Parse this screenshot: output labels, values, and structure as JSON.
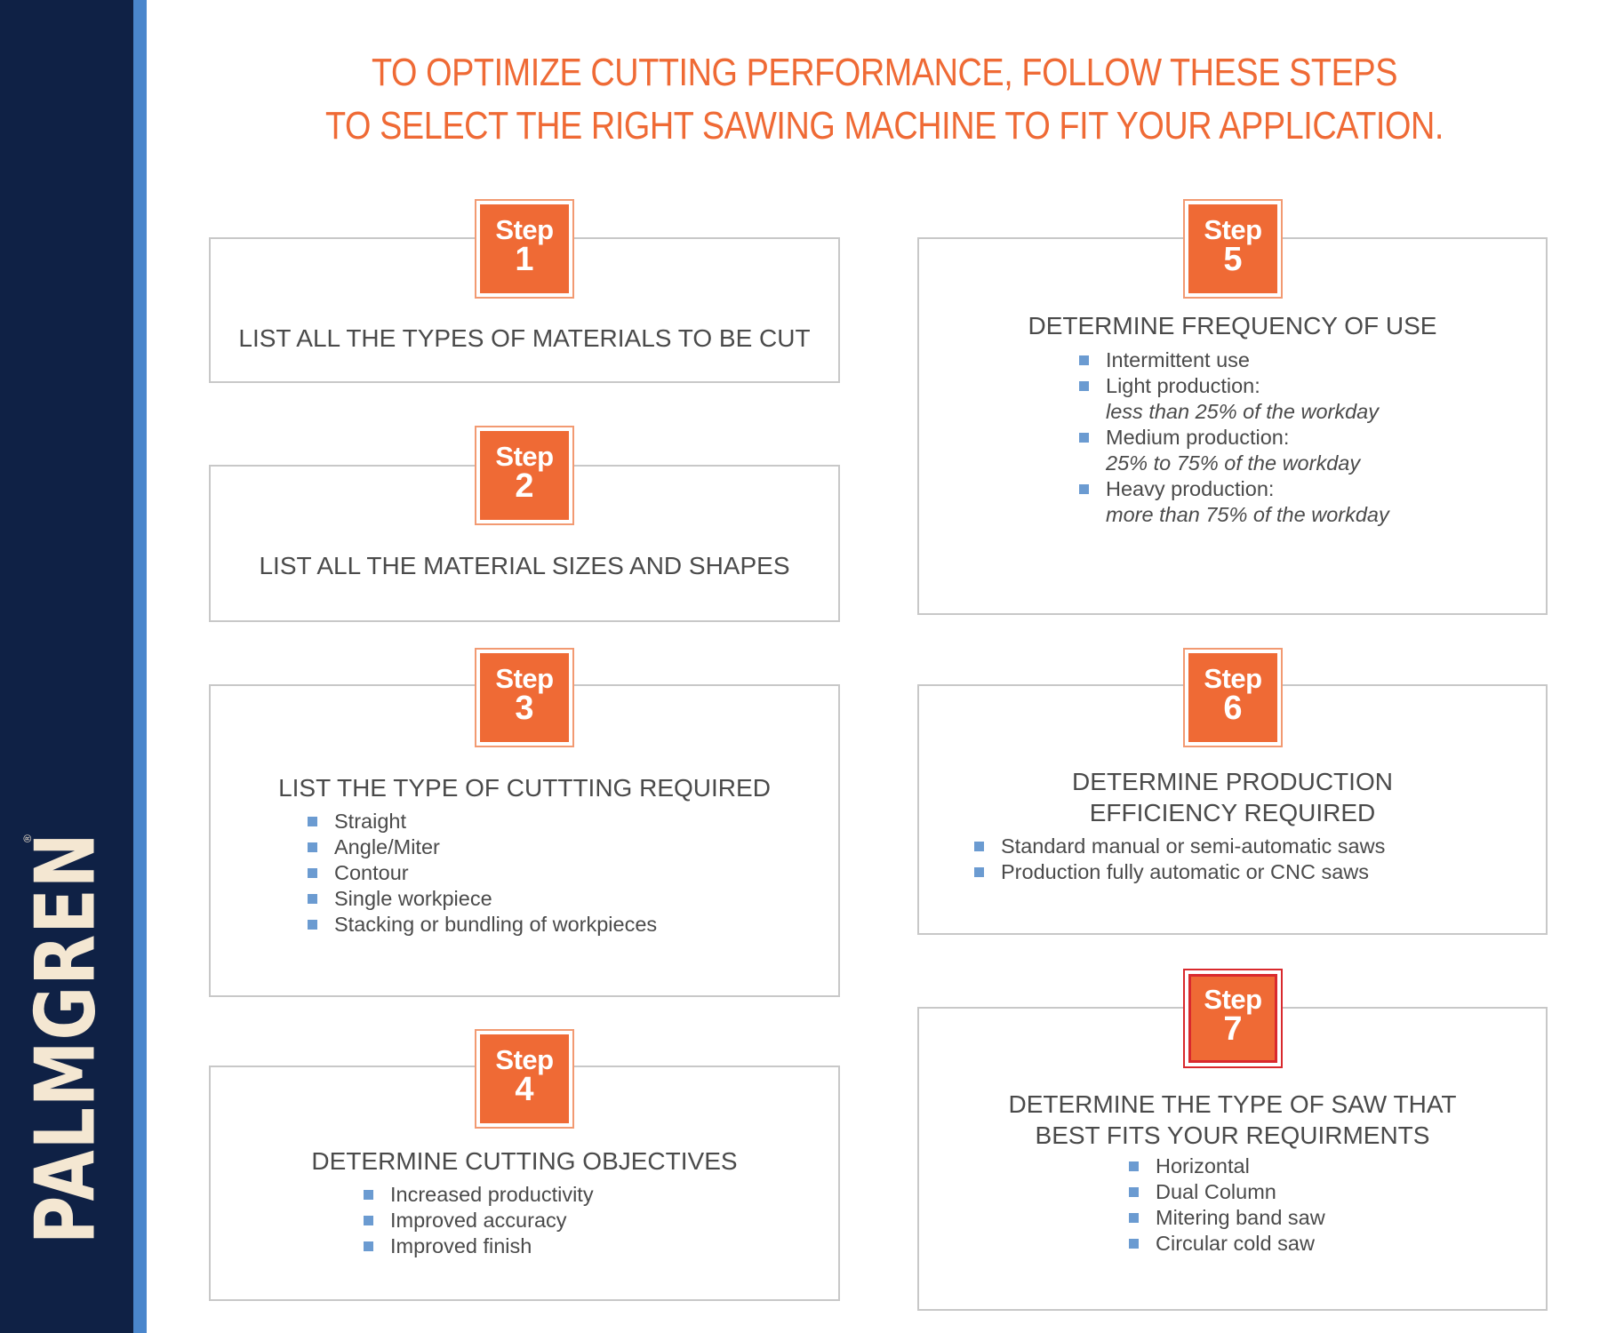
{
  "brand": {
    "logo_text": "PALMGREN",
    "registered_mark": "®"
  },
  "headline": {
    "line1": "TO OPTIMIZE CUTTING PERFORMANCE, FOLLOW THESE STEPS",
    "line2": "TO SELECT THE RIGHT SAWING MACHINE TO FIT YOUR APPLICATION."
  },
  "colors": {
    "accent": "#ef6a35",
    "navy": "#0f2145",
    "stripe": "#4a86cc",
    "bullet": "#6b9bd1",
    "text": "#4a4a4a",
    "highlight_border": "#d9292d"
  },
  "steps": [
    {
      "word": "Step",
      "number": "1",
      "title": "LIST ALL THE TYPES OF MATERIALS TO BE CUT",
      "bullets": []
    },
    {
      "word": "Step",
      "number": "2",
      "title": "LIST ALL THE MATERIAL SIZES AND SHAPES",
      "bullets": []
    },
    {
      "word": "Step",
      "number": "3",
      "title": "LIST THE TYPE OF CUTTTING REQUIRED",
      "bullets": [
        {
          "text": "Straight"
        },
        {
          "text": "Angle/Miter"
        },
        {
          "text": "Contour"
        },
        {
          "text": "Single workpiece"
        },
        {
          "text": "Stacking or bundling of workpieces"
        }
      ]
    },
    {
      "word": "Step",
      "number": "4",
      "title": "DETERMINE CUTTING OBJECTIVES",
      "bullets": [
        {
          "text": "Increased productivity"
        },
        {
          "text": "Improved accuracy"
        },
        {
          "text": "Improved finish"
        }
      ]
    },
    {
      "word": "Step",
      "number": "5",
      "title": "DETERMINE FREQUENCY OF USE",
      "bullets": [
        {
          "text": "Intermittent use"
        },
        {
          "text": "Light production:",
          "sub": "less than 25% of the workday"
        },
        {
          "text": "Medium production:",
          "sub": "25% to 75% of the workday"
        },
        {
          "text": "Heavy production:",
          "sub": "more than 75% of the workday"
        }
      ]
    },
    {
      "word": "Step",
      "number": "6",
      "title_line1": "DETERMINE PRODUCTION",
      "title_line2": "EFFICIENCY REQUIRED",
      "bullets": [
        {
          "text": "Standard manual or semi-automatic saws"
        },
        {
          "text": "Production fully automatic or CNC saws"
        }
      ]
    },
    {
      "word": "Step",
      "number": "7",
      "title_line1": "DETERMINE THE TYPE OF SAW THAT",
      "title_line2": "BEST FITS YOUR REQUIRMENTS",
      "bullets": [
        {
          "text": "Horizontal"
        },
        {
          "text": "Dual Column"
        },
        {
          "text": "Mitering band saw"
        },
        {
          "text": "Circular cold saw"
        }
      ]
    }
  ]
}
